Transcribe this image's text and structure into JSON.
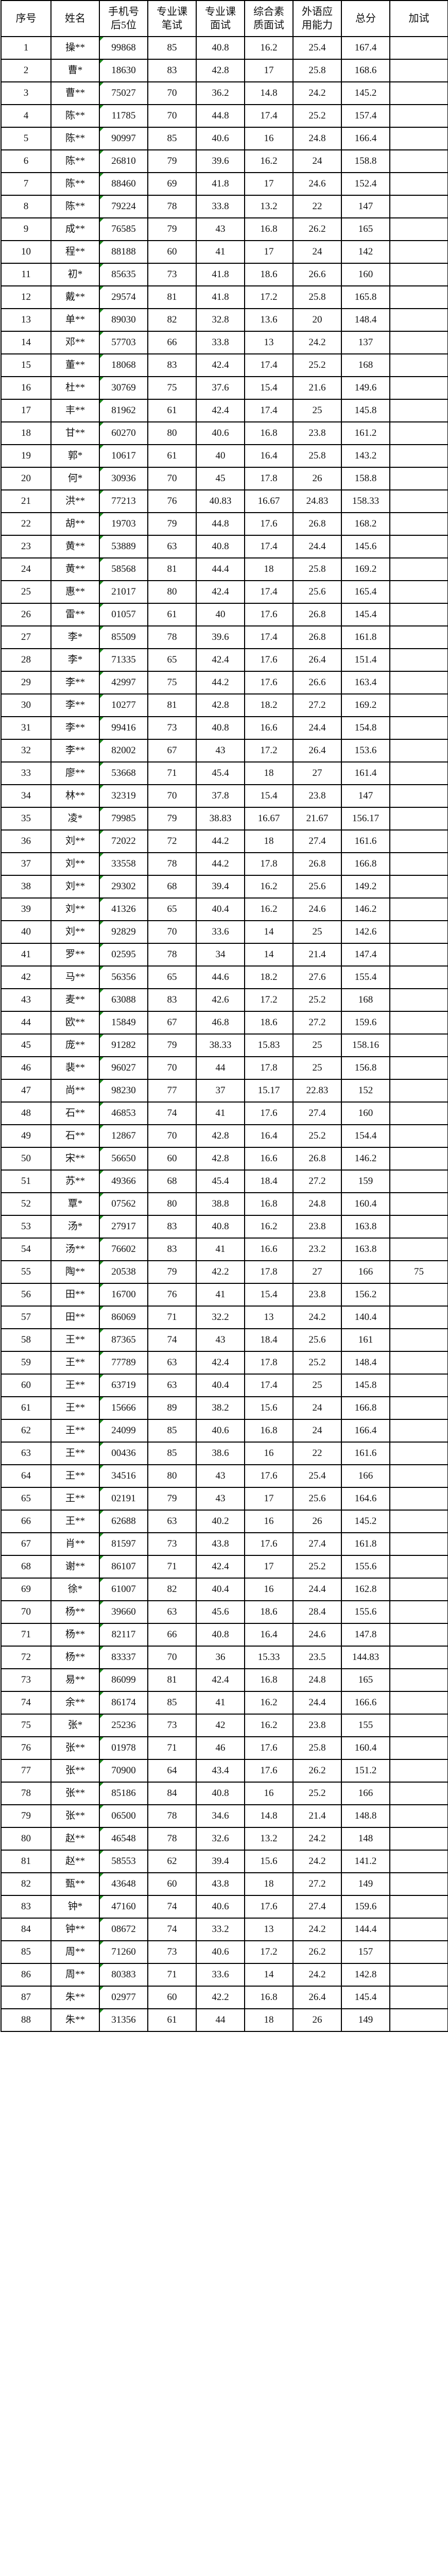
{
  "columns": [
    "序号",
    "姓名",
    "手机号后5位",
    "专业课笔试",
    "专业课面试",
    "综合素质面试",
    "外语应用能力",
    "总分",
    "加试"
  ],
  "rows": [
    [
      "1",
      "操**",
      "99868",
      "85",
      "40.8",
      "16.2",
      "25.4",
      "167.4",
      ""
    ],
    [
      "2",
      "曹*",
      "18630",
      "83",
      "42.8",
      "17",
      "25.8",
      "168.6",
      ""
    ],
    [
      "3",
      "曹**",
      "75027",
      "70",
      "36.2",
      "14.8",
      "24.2",
      "145.2",
      ""
    ],
    [
      "4",
      "陈**",
      "11785",
      "70",
      "44.8",
      "17.4",
      "25.2",
      "157.4",
      ""
    ],
    [
      "5",
      "陈**",
      "90997",
      "85",
      "40.6",
      "16",
      "24.8",
      "166.4",
      ""
    ],
    [
      "6",
      "陈**",
      "26810",
      "79",
      "39.6",
      "16.2",
      "24",
      "158.8",
      ""
    ],
    [
      "7",
      "陈**",
      "88460",
      "69",
      "41.8",
      "17",
      "24.6",
      "152.4",
      ""
    ],
    [
      "8",
      "陈**",
      "79224",
      "78",
      "33.8",
      "13.2",
      "22",
      "147",
      ""
    ],
    [
      "9",
      "成**",
      "76585",
      "79",
      "43",
      "16.8",
      "26.2",
      "165",
      ""
    ],
    [
      "10",
      "程**",
      "88188",
      "60",
      "41",
      "17",
      "24",
      "142",
      ""
    ],
    [
      "11",
      "初*",
      "85635",
      "73",
      "41.8",
      "18.6",
      "26.6",
      "160",
      ""
    ],
    [
      "12",
      "戴**",
      "29574",
      "81",
      "41.8",
      "17.2",
      "25.8",
      "165.8",
      ""
    ],
    [
      "13",
      "单**",
      "89030",
      "82",
      "32.8",
      "13.6",
      "20",
      "148.4",
      ""
    ],
    [
      "14",
      "邓**",
      "57703",
      "66",
      "33.8",
      "13",
      "24.2",
      "137",
      ""
    ],
    [
      "15",
      "董**",
      "18068",
      "83",
      "42.4",
      "17.4",
      "25.2",
      "168",
      ""
    ],
    [
      "16",
      "杜**",
      "30769",
      "75",
      "37.6",
      "15.4",
      "21.6",
      "149.6",
      ""
    ],
    [
      "17",
      "丰**",
      "81962",
      "61",
      "42.4",
      "17.4",
      "25",
      "145.8",
      ""
    ],
    [
      "18",
      "甘**",
      "60270",
      "80",
      "40.6",
      "16.8",
      "23.8",
      "161.2",
      ""
    ],
    [
      "19",
      "郭*",
      "10617",
      "61",
      "40",
      "16.4",
      "25.8",
      "143.2",
      ""
    ],
    [
      "20",
      "何*",
      "30936",
      "70",
      "45",
      "17.8",
      "26",
      "158.8",
      ""
    ],
    [
      "21",
      "洪**",
      "77213",
      "76",
      "40.83",
      "16.67",
      "24.83",
      "158.33",
      ""
    ],
    [
      "22",
      "胡**",
      "19703",
      "79",
      "44.8",
      "17.6",
      "26.8",
      "168.2",
      ""
    ],
    [
      "23",
      "黄**",
      "53889",
      "63",
      "40.8",
      "17.4",
      "24.4",
      "145.6",
      ""
    ],
    [
      "24",
      "黄**",
      "58568",
      "81",
      "44.4",
      "18",
      "25.8",
      "169.2",
      ""
    ],
    [
      "25",
      "惠**",
      "21017",
      "80",
      "42.4",
      "17.4",
      "25.6",
      "165.4",
      ""
    ],
    [
      "26",
      "雷**",
      "01057",
      "61",
      "40",
      "17.6",
      "26.8",
      "145.4",
      ""
    ],
    [
      "27",
      "李*",
      "85509",
      "78",
      "39.6",
      "17.4",
      "26.8",
      "161.8",
      ""
    ],
    [
      "28",
      "李*",
      "71335",
      "65",
      "42.4",
      "17.6",
      "26.4",
      "151.4",
      ""
    ],
    [
      "29",
      "李**",
      "42997",
      "75",
      "44.2",
      "17.6",
      "26.6",
      "163.4",
      ""
    ],
    [
      "30",
      "李**",
      "10277",
      "81",
      "42.8",
      "18.2",
      "27.2",
      "169.2",
      ""
    ],
    [
      "31",
      "李**",
      "99416",
      "73",
      "40.8",
      "16.6",
      "24.4",
      "154.8",
      ""
    ],
    [
      "32",
      "李**",
      "82002",
      "67",
      "43",
      "17.2",
      "26.4",
      "153.6",
      ""
    ],
    [
      "33",
      "廖**",
      "53668",
      "71",
      "45.4",
      "18",
      "27",
      "161.4",
      ""
    ],
    [
      "34",
      "林**",
      "32319",
      "70",
      "37.8",
      "15.4",
      "23.8",
      "147",
      ""
    ],
    [
      "35",
      "凌*",
      "79985",
      "79",
      "38.83",
      "16.67",
      "21.67",
      "156.17",
      ""
    ],
    [
      "36",
      "刘**",
      "72022",
      "72",
      "44.2",
      "18",
      "27.4",
      "161.6",
      ""
    ],
    [
      "37",
      "刘**",
      "33558",
      "78",
      "44.2",
      "17.8",
      "26.8",
      "166.8",
      ""
    ],
    [
      "38",
      "刘**",
      "29302",
      "68",
      "39.4",
      "16.2",
      "25.6",
      "149.2",
      ""
    ],
    [
      "39",
      "刘**",
      "41326",
      "65",
      "40.4",
      "16.2",
      "24.6",
      "146.2",
      ""
    ],
    [
      "40",
      "刘**",
      "92829",
      "70",
      "33.6",
      "14",
      "25",
      "142.6",
      ""
    ],
    [
      "41",
      "罗**",
      "02595",
      "78",
      "34",
      "14",
      "21.4",
      "147.4",
      ""
    ],
    [
      "42",
      "马**",
      "56356",
      "65",
      "44.6",
      "18.2",
      "27.6",
      "155.4",
      ""
    ],
    [
      "43",
      "麦**",
      "63088",
      "83",
      "42.6",
      "17.2",
      "25.2",
      "168",
      ""
    ],
    [
      "44",
      "欧**",
      "15849",
      "67",
      "46.8",
      "18.6",
      "27.2",
      "159.6",
      ""
    ],
    [
      "45",
      "庞**",
      "91282",
      "79",
      "38.33",
      "15.83",
      "25",
      "158.16",
      ""
    ],
    [
      "46",
      "裴**",
      "96027",
      "70",
      "44",
      "17.8",
      "25",
      "156.8",
      ""
    ],
    [
      "47",
      "尚**",
      "98230",
      "77",
      "37",
      "15.17",
      "22.83",
      "152",
      ""
    ],
    [
      "48",
      "石**",
      "46853",
      "74",
      "41",
      "17.6",
      "27.4",
      "160",
      ""
    ],
    [
      "49",
      "石**",
      "12867",
      "70",
      "42.8",
      "16.4",
      "25.2",
      "154.4",
      ""
    ],
    [
      "50",
      "宋**",
      "56650",
      "60",
      "42.8",
      "16.6",
      "26.8",
      "146.2",
      ""
    ],
    [
      "51",
      "苏**",
      "49366",
      "68",
      "45.4",
      "18.4",
      "27.2",
      "159",
      ""
    ],
    [
      "52",
      "覃*",
      "07562",
      "80",
      "38.8",
      "16.8",
      "24.8",
      "160.4",
      ""
    ],
    [
      "53",
      "汤*",
      "27917",
      "83",
      "40.8",
      "16.2",
      "23.8",
      "163.8",
      ""
    ],
    [
      "54",
      "汤**",
      "76602",
      "83",
      "41",
      "16.6",
      "23.2",
      "163.8",
      ""
    ],
    [
      "55",
      "陶**",
      "20538",
      "79",
      "42.2",
      "17.8",
      "27",
      "166",
      "75"
    ],
    [
      "56",
      "田**",
      "16700",
      "76",
      "41",
      "15.4",
      "23.8",
      "156.2",
      ""
    ],
    [
      "57",
      "田**",
      "86069",
      "71",
      "32.2",
      "13",
      "24.2",
      "140.4",
      ""
    ],
    [
      "58",
      "王**",
      "87365",
      "74",
      "43",
      "18.4",
      "25.6",
      "161",
      ""
    ],
    [
      "59",
      "王**",
      "77789",
      "63",
      "42.4",
      "17.8",
      "25.2",
      "148.4",
      ""
    ],
    [
      "60",
      "王**",
      "63719",
      "63",
      "40.4",
      "17.4",
      "25",
      "145.8",
      ""
    ],
    [
      "61",
      "王**",
      "15666",
      "89",
      "38.2",
      "15.6",
      "24",
      "166.8",
      ""
    ],
    [
      "62",
      "王**",
      "24099",
      "85",
      "40.6",
      "16.8",
      "24",
      "166.4",
      ""
    ],
    [
      "63",
      "王**",
      "00436",
      "85",
      "38.6",
      "16",
      "22",
      "161.6",
      ""
    ],
    [
      "64",
      "王**",
      "34516",
      "80",
      "43",
      "17.6",
      "25.4",
      "166",
      ""
    ],
    [
      "65",
      "王**",
      "02191",
      "79",
      "43",
      "17",
      "25.6",
      "164.6",
      ""
    ],
    [
      "66",
      "王**",
      "62688",
      "63",
      "40.2",
      "16",
      "26",
      "145.2",
      ""
    ],
    [
      "67",
      "肖**",
      "81597",
      "73",
      "43.8",
      "17.6",
      "27.4",
      "161.8",
      ""
    ],
    [
      "68",
      "谢**",
      "86107",
      "71",
      "42.4",
      "17",
      "25.2",
      "155.6",
      ""
    ],
    [
      "69",
      "徐*",
      "61007",
      "82",
      "40.4",
      "16",
      "24.4",
      "162.8",
      ""
    ],
    [
      "70",
      "杨**",
      "39660",
      "63",
      "45.6",
      "18.6",
      "28.4",
      "155.6",
      ""
    ],
    [
      "71",
      "杨**",
      "82117",
      "66",
      "40.8",
      "16.4",
      "24.6",
      "147.8",
      ""
    ],
    [
      "72",
      "杨**",
      "83337",
      "70",
      "36",
      "15.33",
      "23.5",
      "144.83",
      ""
    ],
    [
      "73",
      "易**",
      "86099",
      "81",
      "42.4",
      "16.8",
      "24.8",
      "165",
      ""
    ],
    [
      "74",
      "余**",
      "86174",
      "85",
      "41",
      "16.2",
      "24.4",
      "166.6",
      ""
    ],
    [
      "75",
      "张*",
      "25236",
      "73",
      "42",
      "16.2",
      "23.8",
      "155",
      ""
    ],
    [
      "76",
      "张**",
      "01978",
      "71",
      "46",
      "17.6",
      "25.8",
      "160.4",
      ""
    ],
    [
      "77",
      "张**",
      "70900",
      "64",
      "43.4",
      "17.6",
      "26.2",
      "151.2",
      ""
    ],
    [
      "78",
      "张**",
      "85186",
      "84",
      "40.8",
      "16",
      "25.2",
      "166",
      ""
    ],
    [
      "79",
      "张**",
      "06500",
      "78",
      "34.6",
      "14.8",
      "21.4",
      "148.8",
      ""
    ],
    [
      "80",
      "赵**",
      "46548",
      "78",
      "32.6",
      "13.2",
      "24.2",
      "148",
      ""
    ],
    [
      "81",
      "赵**",
      "58553",
      "62",
      "39.4",
      "15.6",
      "24.2",
      "141.2",
      ""
    ],
    [
      "82",
      "甄**",
      "43648",
      "60",
      "43.8",
      "18",
      "27.2",
      "149",
      ""
    ],
    [
      "83",
      "钟*",
      "47160",
      "74",
      "40.6",
      "17.6",
      "27.4",
      "159.6",
      ""
    ],
    [
      "84",
      "钟**",
      "08672",
      "74",
      "33.2",
      "13",
      "24.2",
      "144.4",
      ""
    ],
    [
      "85",
      "周**",
      "71260",
      "73",
      "40.6",
      "17.2",
      "26.2",
      "157",
      ""
    ],
    [
      "86",
      "周**",
      "80383",
      "71",
      "33.6",
      "14",
      "24.2",
      "142.8",
      ""
    ],
    [
      "87",
      "朱**",
      "02977",
      "60",
      "42.2",
      "16.8",
      "26.4",
      "145.4",
      ""
    ],
    [
      "88",
      "朱**",
      "31356",
      "61",
      "44",
      "18",
      "26",
      "149",
      ""
    ]
  ],
  "colors": {
    "border": "#000000",
    "text_indicator": "#1a8a1a"
  }
}
